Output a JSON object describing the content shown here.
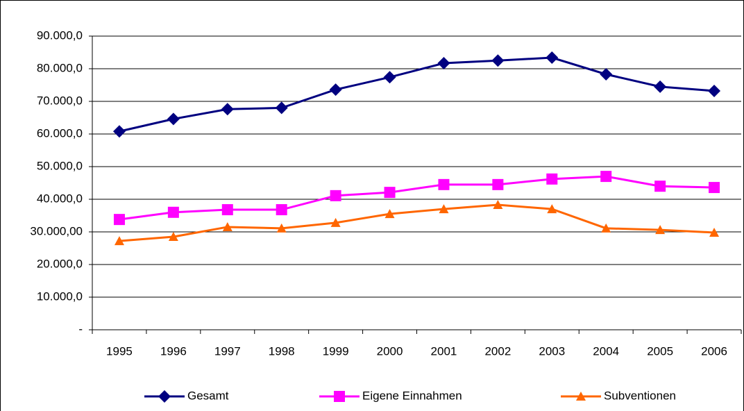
{
  "chart_data": {
    "type": "line",
    "categories": [
      "1995",
      "1996",
      "1997",
      "1998",
      "1999",
      "2000",
      "2001",
      "2002",
      "2003",
      "2004",
      "2005",
      "2006"
    ],
    "ylim": [
      0,
      90000
    ],
    "yticks": [
      {
        "value": 0,
        "label": "-"
      },
      {
        "value": 10000,
        "label": "10.000,0"
      },
      {
        "value": 20000,
        "label": "20.000,0"
      },
      {
        "value": 30000,
        "label": "30.000,00"
      },
      {
        "value": 40000,
        "label": "40.000,0"
      },
      {
        "value": 50000,
        "label": "50.000,0"
      },
      {
        "value": 60000,
        "label": "60.000,0"
      },
      {
        "value": 70000,
        "label": "70.000,0"
      },
      {
        "value": 80000,
        "label": "80.000,0"
      },
      {
        "value": 90000,
        "label": "90.000,0"
      }
    ],
    "grid": true,
    "legend": "bottom",
    "series": [
      {
        "name": "Gesamt",
        "color": "#000080",
        "marker": "diamond",
        "values": [
          60800,
          64600,
          67600,
          68000,
          73600,
          77400,
          81700,
          82500,
          83400,
          78300,
          74500,
          73200
        ]
      },
      {
        "name": "Eigene Einnahmen",
        "color": "#FF00FF",
        "marker": "square",
        "values": [
          33800,
          36000,
          36800,
          36800,
          41100,
          42100,
          44500,
          44500,
          46200,
          47000,
          44000,
          43600
        ]
      },
      {
        "name": "Subventionen",
        "color": "#FF6600",
        "marker": "triangle",
        "values": [
          27200,
          28500,
          31500,
          31100,
          32800,
          35500,
          37000,
          38300,
          37000,
          31100,
          30600,
          29800
        ]
      }
    ]
  }
}
